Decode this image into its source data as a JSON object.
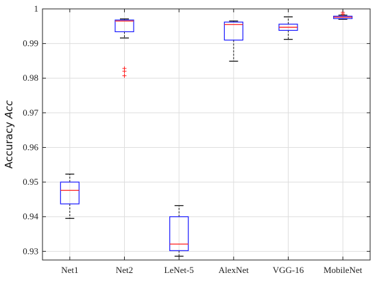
{
  "chart_data": {
    "type": "box",
    "title": "",
    "xlabel": "",
    "ylabel": "Accuracy ",
    "ylabel_symbol": "Acc",
    "ylim": [
      0.9275,
      1.0
    ],
    "yticks": [
      0.93,
      0.94,
      0.95,
      0.96,
      0.97,
      0.98,
      0.99,
      1
    ],
    "ytick_labels": [
      "0.93",
      "0.94",
      "0.95",
      "0.96",
      "0.97",
      "0.98",
      "0.99",
      "1"
    ],
    "grid": true,
    "categories": [
      "Net1",
      "Net2",
      "LeNet-5",
      "AlexNet",
      "VGG-16",
      "MobileNet"
    ],
    "boxes": [
      {
        "category": "Net1",
        "min": 0.9395,
        "q1": 0.9437,
        "median": 0.9476,
        "q3": 0.95,
        "max": 0.9523,
        "outliers": []
      },
      {
        "category": "Net2",
        "min": 0.9916,
        "q1": 0.9934,
        "median": 0.9965,
        "q3": 0.9968,
        "max": 0.9971,
        "outliers": [
          0.9807,
          0.982,
          0.9828
        ]
      },
      {
        "category": "LeNet-5",
        "min": 0.9286,
        "q1": 0.9302,
        "median": 0.9321,
        "q3": 0.94,
        "max": 0.9432,
        "outliers": []
      },
      {
        "category": "AlexNet",
        "min": 0.9849,
        "q1": 0.991,
        "median": 0.9955,
        "q3": 0.9962,
        "max": 0.9965,
        "outliers": []
      },
      {
        "category": "VGG-16",
        "min": 0.9912,
        "q1": 0.9938,
        "median": 0.9947,
        "q3": 0.9956,
        "max": 0.9977,
        "outliers": []
      },
      {
        "category": "MobileNet",
        "min": 0.997,
        "q1": 0.9972,
        "median": 0.9976,
        "q3": 0.9979,
        "max": 0.9982,
        "outliers": [
          0.9985,
          0.999
        ]
      }
    ],
    "colors": {
      "box": "#1a1aff",
      "median": "#ff1a1a",
      "whisker": "#111111",
      "outlier": "#ff1a1a",
      "grid": "#dedede",
      "axis": "#222222"
    }
  }
}
